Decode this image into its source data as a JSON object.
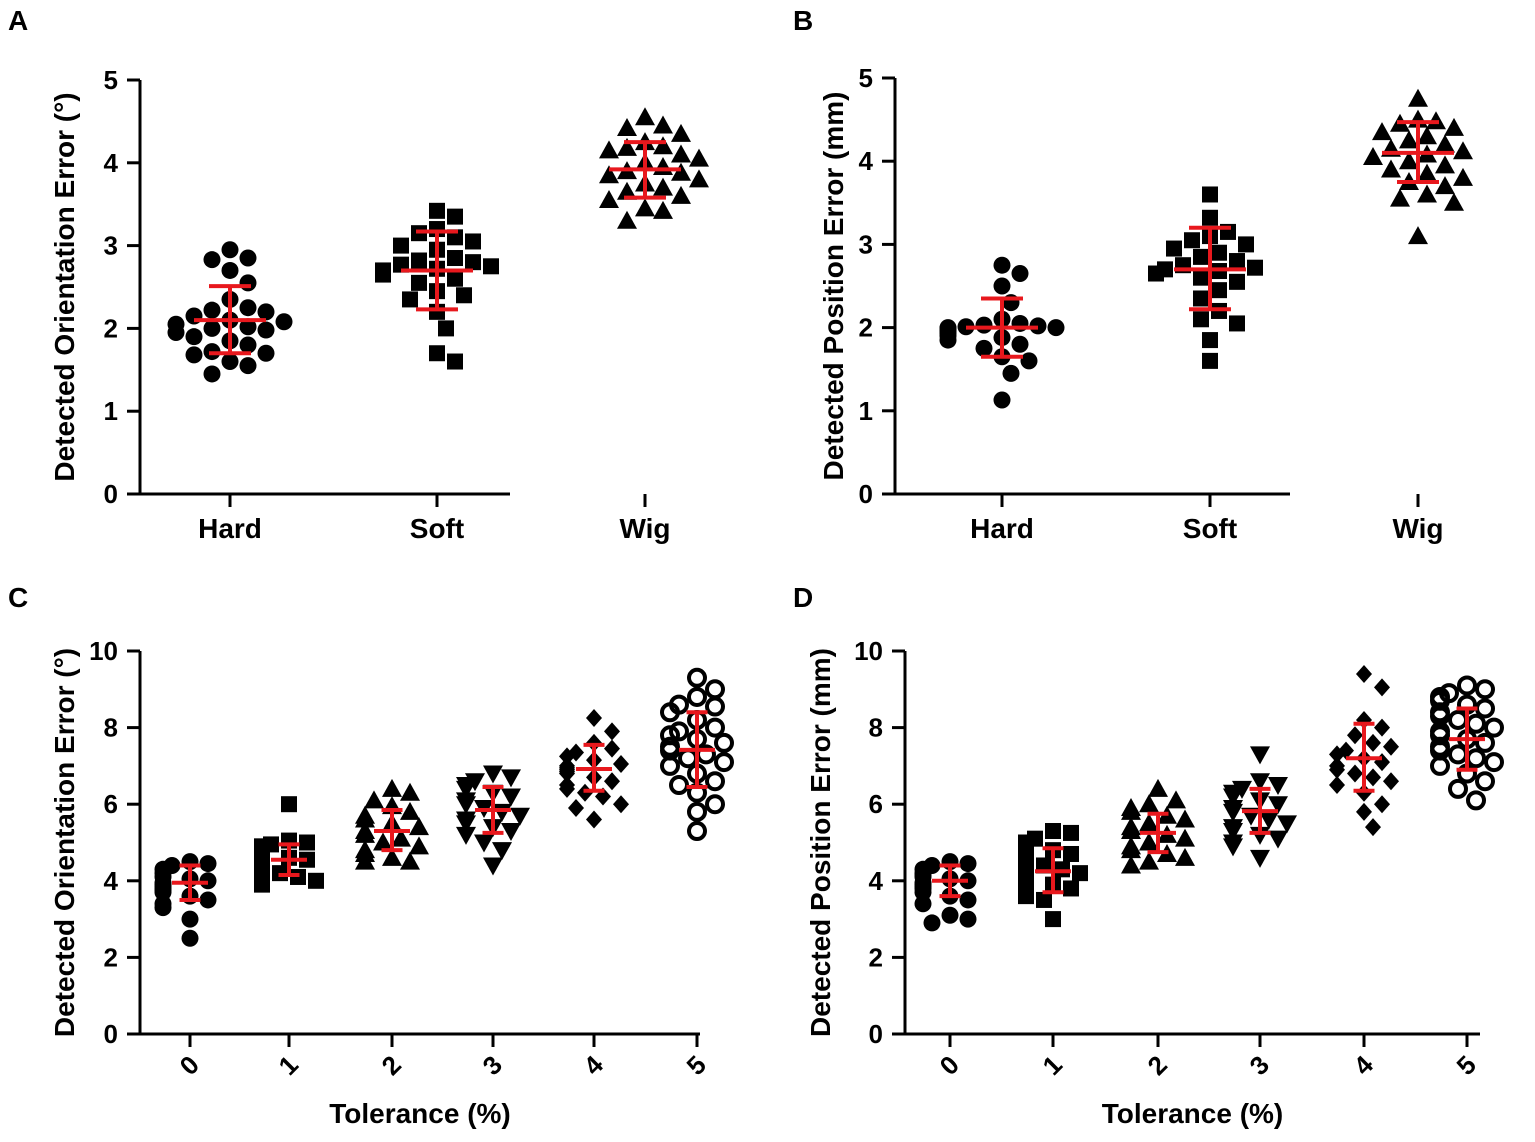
{
  "chart_data": [
    {
      "panel": "A",
      "type": "scatter",
      "ylabel": "Detected Orientation Error (°)",
      "xlabel": "",
      "ylim": [
        0,
        5
      ],
      "yticks": [
        0,
        1,
        2,
        3,
        4,
        5
      ],
      "categories": [
        "Hard",
        "Soft",
        "Wig"
      ],
      "markers": [
        "circle",
        "square",
        "triangle"
      ],
      "groups": [
        {
          "name": "Hard",
          "mean": 2.1,
          "sd_low": 1.7,
          "sd_high": 2.51,
          "values": [
            2.95,
            2.85,
            2.83,
            2.7,
            2.55,
            2.35,
            2.25,
            2.22,
            2.2,
            2.15,
            2.1,
            2.08,
            2.05,
            2.02,
            2.0,
            1.98,
            1.95,
            1.9,
            1.85,
            1.8,
            1.72,
            1.7,
            1.68,
            1.6,
            1.55,
            1.45
          ]
        },
        {
          "name": "Soft",
          "mean": 2.7,
          "sd_low": 2.23,
          "sd_high": 3.17,
          "values": [
            3.42,
            3.35,
            3.2,
            3.15,
            3.1,
            3.05,
            3.0,
            2.95,
            2.85,
            2.82,
            2.8,
            2.77,
            2.75,
            2.72,
            2.7,
            2.68,
            2.65,
            2.6,
            2.55,
            2.45,
            2.4,
            2.35,
            2.2,
            2.0,
            1.7,
            1.6
          ]
        },
        {
          "name": "Wig",
          "mean": 3.92,
          "sd_low": 3.58,
          "sd_high": 4.25,
          "values": [
            4.55,
            4.45,
            4.42,
            4.35,
            4.25,
            4.2,
            4.18,
            4.15,
            4.1,
            4.05,
            4.0,
            3.95,
            3.9,
            3.88,
            3.85,
            3.8,
            3.75,
            3.7,
            3.65,
            3.6,
            3.55,
            3.45,
            3.42,
            3.3
          ]
        }
      ]
    },
    {
      "panel": "B",
      "type": "scatter",
      "ylabel": "Detected Position Error (mm)",
      "xlabel": "",
      "ylim": [
        0,
        5
      ],
      "yticks": [
        0,
        1,
        2,
        3,
        4,
        5
      ],
      "categories": [
        "Hard",
        "Soft",
        "Wig"
      ],
      "markers": [
        "circle",
        "square",
        "triangle"
      ],
      "groups": [
        {
          "name": "Hard",
          "mean": 2.0,
          "sd_low": 1.65,
          "sd_high": 2.35,
          "values": [
            2.75,
            2.65,
            2.5,
            2.3,
            2.1,
            2.05,
            2.03,
            2.02,
            2.01,
            2.0,
            2.0,
            1.99,
            1.98,
            1.97,
            1.96,
            1.95,
            1.93,
            1.9,
            1.88,
            1.85,
            1.8,
            1.75,
            1.65,
            1.6,
            1.45,
            1.13
          ]
        },
        {
          "name": "Soft",
          "mean": 2.7,
          "sd_low": 2.22,
          "sd_high": 3.2,
          "values": [
            3.6,
            3.32,
            3.15,
            3.1,
            3.05,
            3.0,
            2.95,
            2.9,
            2.85,
            2.8,
            2.75,
            2.72,
            2.7,
            2.68,
            2.65,
            2.6,
            2.55,
            2.45,
            2.35,
            2.2,
            2.1,
            2.05,
            1.85,
            1.6
          ]
        },
        {
          "name": "Wig",
          "mean": 4.1,
          "sd_low": 3.75,
          "sd_high": 4.47,
          "values": [
            4.75,
            4.5,
            4.48,
            4.45,
            4.4,
            4.35,
            4.3,
            4.25,
            4.2,
            4.15,
            4.12,
            4.08,
            4.05,
            4.0,
            3.95,
            3.9,
            3.85,
            3.8,
            3.75,
            3.7,
            3.6,
            3.55,
            3.5,
            3.1
          ]
        }
      ]
    },
    {
      "panel": "C",
      "type": "scatter",
      "ylabel": "Detected Orientation Error (°)",
      "xlabel": "Tolerance (%)",
      "ylim": [
        0,
        10
      ],
      "yticks": [
        0,
        2,
        4,
        6,
        8,
        10
      ],
      "categories": [
        "0",
        "1",
        "2",
        "3",
        "4",
        "5"
      ],
      "markers": [
        "circle",
        "square",
        "triangle",
        "triangle-down",
        "diamond",
        "open-circle"
      ],
      "groups": [
        {
          "name": "0",
          "mean": 3.95,
          "sd_low": 3.5,
          "sd_high": 4.4,
          "values": [
            4.5,
            4.45,
            4.4,
            4.3,
            4.2,
            4.1,
            4.05,
            4.0,
            3.95,
            3.9,
            3.85,
            3.8,
            3.75,
            3.7,
            3.6,
            3.5,
            3.4,
            3.3,
            3.0,
            2.5
          ]
        },
        {
          "name": "1",
          "mean": 4.55,
          "sd_low": 4.15,
          "sd_high": 4.95,
          "values": [
            6.0,
            5.05,
            5.0,
            4.95,
            4.9,
            4.85,
            4.8,
            4.75,
            4.7,
            4.65,
            4.6,
            4.55,
            4.5,
            4.45,
            4.4,
            4.3,
            4.2,
            4.1,
            4.0,
            3.9
          ]
        },
        {
          "name": "2",
          "mean": 5.3,
          "sd_low": 4.8,
          "sd_high": 5.85,
          "values": [
            6.4,
            6.3,
            6.1,
            5.95,
            5.8,
            5.7,
            5.6,
            5.5,
            5.4,
            5.3,
            5.2,
            5.1,
            5.0,
            4.9,
            4.8,
            4.7,
            4.6,
            4.5,
            4.5
          ]
        },
        {
          "name": "3",
          "mean": 5.85,
          "sd_low": 5.25,
          "sd_high": 6.45,
          "values": [
            6.8,
            6.7,
            6.6,
            6.5,
            6.4,
            6.3,
            6.2,
            6.1,
            6.0,
            5.9,
            5.8,
            5.7,
            5.6,
            5.5,
            5.4,
            5.3,
            5.2,
            5.0,
            4.8,
            4.4
          ]
        },
        {
          "name": "4",
          "mean": 6.92,
          "sd_low": 6.35,
          "sd_high": 7.55,
          "values": [
            8.25,
            7.9,
            7.6,
            7.45,
            7.35,
            7.25,
            7.15,
            7.05,
            7.0,
            6.95,
            6.9,
            6.85,
            6.8,
            6.7,
            6.6,
            6.5,
            6.4,
            6.3,
            6.2,
            6.0,
            5.9,
            5.6
          ]
        },
        {
          "name": "5",
          "mean": 7.42,
          "sd_low": 6.45,
          "sd_high": 8.4,
          "values": [
            9.3,
            9.0,
            8.8,
            8.6,
            8.55,
            8.4,
            8.2,
            8.0,
            7.9,
            7.8,
            7.7,
            7.6,
            7.5,
            7.4,
            7.3,
            7.2,
            7.1,
            7.0,
            6.8,
            6.6,
            6.5,
            6.3,
            6.0,
            5.8,
            5.3
          ]
        }
      ]
    },
    {
      "panel": "D",
      "type": "scatter",
      "ylabel": "Detected Position Error (mm)",
      "xlabel": "Tolerance (%)",
      "ylim": [
        0,
        10
      ],
      "yticks": [
        0,
        2,
        4,
        6,
        8,
        10
      ],
      "categories": [
        "0",
        "1",
        "2",
        "3",
        "4",
        "5"
      ],
      "markers": [
        "circle",
        "square",
        "triangle",
        "triangle-down",
        "diamond",
        "open-circle"
      ],
      "groups": [
        {
          "name": "0",
          "mean": 4.0,
          "sd_low": 3.6,
          "sd_high": 4.4,
          "values": [
            4.5,
            4.45,
            4.4,
            4.3,
            4.2,
            4.15,
            4.1,
            4.05,
            4.0,
            3.95,
            3.9,
            3.85,
            3.8,
            3.7,
            3.6,
            3.5,
            3.4,
            3.1,
            3.0,
            2.9
          ]
        },
        {
          "name": "1",
          "mean": 4.25,
          "sd_low": 3.7,
          "sd_high": 4.85,
          "values": [
            5.3,
            5.25,
            5.1,
            5.0,
            4.9,
            4.8,
            4.7,
            4.6,
            4.5,
            4.4,
            4.3,
            4.2,
            4.1,
            4.0,
            3.9,
            3.8,
            3.7,
            3.6,
            3.5,
            3.0
          ]
        },
        {
          "name": "2",
          "mean": 5.25,
          "sd_low": 4.75,
          "sd_high": 5.75,
          "values": [
            6.4,
            6.1,
            6.0,
            5.9,
            5.8,
            5.7,
            5.6,
            5.5,
            5.4,
            5.3,
            5.2,
            5.1,
            5.0,
            4.9,
            4.8,
            4.7,
            4.6,
            4.5,
            4.4
          ]
        },
        {
          "name": "3",
          "mean": 5.82,
          "sd_low": 5.25,
          "sd_high": 6.4,
          "values": [
            7.3,
            6.6,
            6.5,
            6.4,
            6.3,
            6.2,
            6.1,
            6.0,
            5.9,
            5.8,
            5.7,
            5.6,
            5.5,
            5.4,
            5.3,
            5.2,
            5.1,
            5.0,
            4.9,
            4.6
          ]
        },
        {
          "name": "4",
          "mean": 7.2,
          "sd_low": 6.35,
          "sd_high": 8.1,
          "values": [
            9.4,
            9.05,
            8.2,
            8.0,
            7.8,
            7.6,
            7.5,
            7.4,
            7.3,
            7.2,
            7.1,
            7.0,
            6.9,
            6.8,
            6.7,
            6.6,
            6.5,
            6.3,
            6.0,
            5.8,
            5.4
          ]
        },
        {
          "name": "5",
          "mean": 7.7,
          "sd_low": 6.9,
          "sd_high": 8.5,
          "values": [
            9.1,
            9.0,
            8.9,
            8.8,
            8.7,
            8.6,
            8.5,
            8.4,
            8.3,
            8.2,
            8.1,
            8.0,
            7.9,
            7.8,
            7.7,
            7.6,
            7.5,
            7.4,
            7.3,
            7.2,
            7.1,
            7.0,
            6.8,
            6.6,
            6.4,
            6.1
          ]
        }
      ]
    }
  ]
}
